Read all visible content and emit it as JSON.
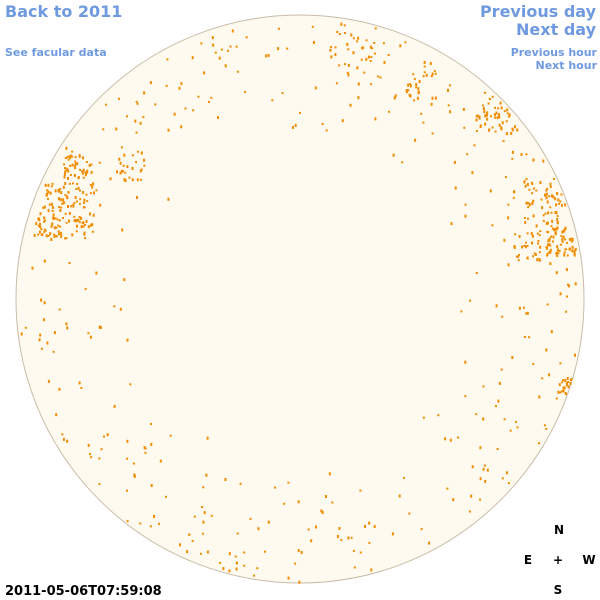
{
  "nav": {
    "back_year": "Back to 2011",
    "facular_link": "See facular data",
    "previous_day": "Previous day",
    "next_day": "Next day",
    "previous_hour": "Previous hour",
    "next_hour": "Next hour"
  },
  "compass": {
    "north": "N",
    "east": "E",
    "center": "+",
    "west": "W",
    "south": "S"
  },
  "timestamp": "2011-05-06T07:59:08"
}
